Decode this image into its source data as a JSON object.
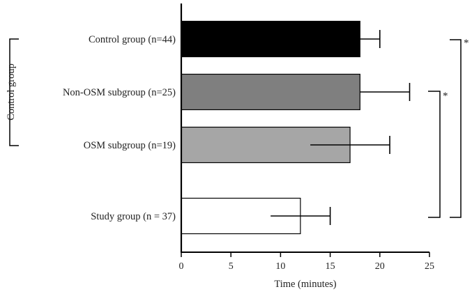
{
  "chart_data": {
    "type": "bar",
    "orientation": "horizontal",
    "categories": [
      "Control group (n=44)",
      "Non-OSM subgroup (n=25)",
      "OSM subgroup (n=19)",
      "Study group (n = 37)"
    ],
    "values": [
      18,
      18,
      17,
      12
    ],
    "errors": [
      2,
      5,
      4,
      3
    ],
    "bar_colors": [
      "#000000",
      "#7f7f7f",
      "#a6a6a6",
      "#ffffff"
    ],
    "xlabel": "Time (minutes)",
    "xlim": [
      0,
      25
    ],
    "xticks": [
      "0",
      "5",
      "10",
      "15",
      "20",
      "25"
    ],
    "grid": false,
    "group_bracket_label": "Control group",
    "significance": [
      {
        "label": "*",
        "from": "Control group (n=44)",
        "to": "Study group (n = 37)"
      },
      {
        "label": "*",
        "from": "Non-OSM subgroup (n=25)",
        "to": "Study group (n = 37)"
      }
    ]
  }
}
